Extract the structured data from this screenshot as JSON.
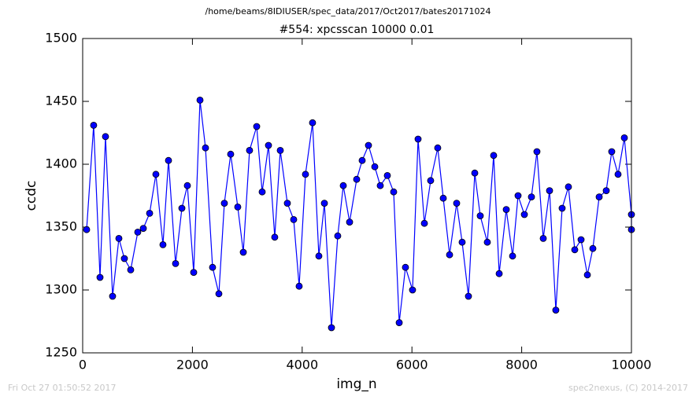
{
  "chart_data": {
    "type": "line",
    "suptitle": "/home/beams/8IDIUSER/spec_data/2017/Oct2017/bates20171024",
    "title": "#554: xpcsscan 10000 0.01",
    "x_label": "img_n",
    "y_label": "ccdc",
    "footer_left": "Fri Oct 27 01:50:52 2017",
    "footer_right": "spec2nexus, (C) 2014-2017",
    "xlim": [
      0,
      10000
    ],
    "ylim": [
      1250,
      1500
    ],
    "xticks": [
      0,
      2000,
      4000,
      6000,
      8000,
      10000
    ],
    "yticks": [
      1250,
      1300,
      1350,
      1400,
      1450,
      1500
    ],
    "x": [
      72,
      200,
      316,
      416,
      545,
      660,
      760,
      875,
      1004,
      1105,
      1220,
      1334,
      1463,
      1564,
      1693,
      1808,
      1908,
      2023,
      2138,
      2238,
      2367,
      2482,
      2582,
      2697,
      2826,
      2927,
      3041,
      3171,
      3271,
      3386,
      3500,
      3601,
      3730,
      3845,
      3945,
      4060,
      4189,
      4304,
      4405,
      4534,
      4648,
      4749,
      4864,
      4993,
      5093,
      5208,
      5323,
      5423,
      5552,
      5667,
      5768,
      5882,
      6011,
      6112,
      6227,
      6341,
      6470,
      6571,
      6686,
      6815,
      6915,
      7030,
      7145,
      7245,
      7374,
      7489,
      7590,
      7719,
      7834,
      7934,
      8049,
      8178,
      8278,
      8393,
      8508,
      8622,
      8737,
      8852,
      8967,
      9082,
      9197,
      9297,
      9412,
      9541,
      9641,
      9756,
      9871,
      10000,
      10000
    ],
    "series": [
      {
        "color": "#0000ff",
        "marker_edge": "#000000",
        "values": [
          1348,
          1431,
          1310,
          1422,
          1295,
          1341,
          1325,
          1316,
          1346,
          1349,
          1361,
          1392,
          1336,
          1403,
          1321,
          1365,
          1383,
          1314,
          1451,
          1413,
          1318,
          1297,
          1369,
          1408,
          1366,
          1330,
          1411,
          1430,
          1378,
          1415,
          1342,
          1411,
          1369,
          1356,
          1303,
          1392,
          1433,
          1327,
          1369,
          1270,
          1343,
          1383,
          1354,
          1388,
          1403,
          1415,
          1398,
          1383,
          1391,
          1378,
          1274,
          1318,
          1300,
          1420,
          1353,
          1387,
          1413,
          1373,
          1328,
          1369,
          1338,
          1295,
          1393,
          1359,
          1338,
          1407,
          1313,
          1364,
          1327,
          1375,
          1360,
          1374,
          1410,
          1341,
          1379,
          1284,
          1365,
          1382,
          1332,
          1340,
          1312,
          1333,
          1374,
          1379,
          1410,
          1392,
          1421,
          1360,
          1348
        ]
      }
    ]
  }
}
